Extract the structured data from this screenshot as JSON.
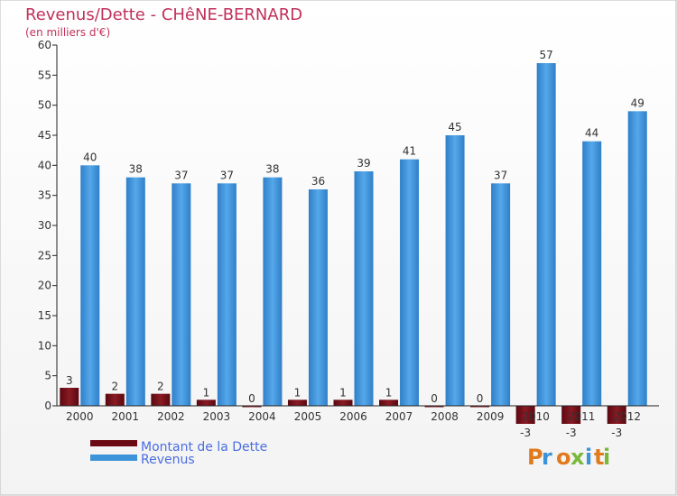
{
  "chart_data": {
    "type": "bar",
    "title": "Revenus/Dette - CHêNE-BERNARD",
    "subtitle": "(en milliers d'€)",
    "categories": [
      "2000",
      "2001",
      "2002",
      "2003",
      "2004",
      "2005",
      "2006",
      "2007",
      "2008",
      "2009",
      "2010",
      "2011",
      "2012"
    ],
    "series": [
      {
        "name": "Montant de la Dette",
        "color": "#6b0a12",
        "values": [
          3,
          2,
          2,
          1,
          0,
          1,
          1,
          1,
          0,
          0,
          -3,
          -3,
          -3
        ]
      },
      {
        "name": "Revenus",
        "color": "#3d93d8",
        "values": [
          40,
          38,
          37,
          37,
          38,
          36,
          39,
          41,
          45,
          37,
          57,
          44,
          49
        ]
      }
    ],
    "ylim": [
      0,
      60
    ],
    "yticks": [
      0,
      5,
      10,
      15,
      20,
      25,
      30,
      35,
      40,
      45,
      50,
      55,
      60
    ],
    "grid": false,
    "legend": "bottom-left"
  },
  "logo": {
    "text": "Proxiti"
  }
}
